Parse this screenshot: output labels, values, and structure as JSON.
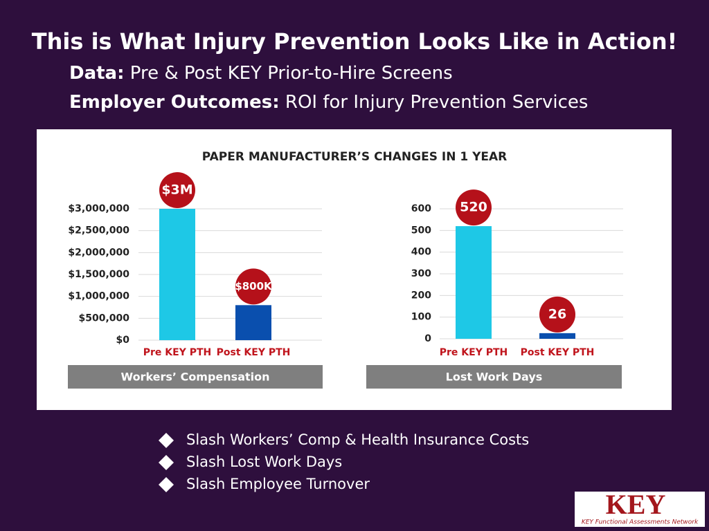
{
  "header": {
    "title": "This is What Injury Prevention Looks Like in Action!",
    "lines": [
      {
        "label": "Data:",
        "text": "Pre & Post KEY Prior-to-Hire Screens"
      },
      {
        "label": "Employer Outcomes:",
        "text": "ROI for Injury Prevention Services"
      }
    ]
  },
  "panel": {
    "title": "PAPER MANUFACTURER’S CHANGES IN 1 YEAR"
  },
  "chart_data": [
    {
      "type": "bar",
      "xlabel": "Workers’ Compensation",
      "categories": [
        "Pre KEY PTH",
        "Post KEY PTH"
      ],
      "values": [
        3000000,
        800000
      ],
      "value_labels": [
        "$3M",
        "$800K"
      ],
      "colors": [
        "#1ec8e6",
        "#0a4fae"
      ],
      "ylim": [
        0,
        3000000
      ],
      "yticks": [
        {
          "value": 0,
          "label": "$0"
        },
        {
          "value": 500000,
          "label": "$500,000"
        },
        {
          "value": 1000000,
          "label": "$1,000,000"
        },
        {
          "value": 1500000,
          "label": "$1,500,000"
        },
        {
          "value": 2000000,
          "label": "$2,000,000"
        },
        {
          "value": 2500000,
          "label": "$2,500,000"
        },
        {
          "value": 3000000,
          "label": "$3,000,000"
        }
      ],
      "grid": true
    },
    {
      "type": "bar",
      "xlabel": "Lost Work Days",
      "categories": [
        "Pre KEY PTH",
        "Post KEY PTH"
      ],
      "values": [
        520,
        26
      ],
      "colors": [
        "#1ec8e6",
        "#0a4fae"
      ],
      "ylim": [
        0,
        600
      ],
      "yticks": [
        0,
        100,
        200,
        300,
        400,
        500,
        600
      ],
      "grid": true
    }
  ],
  "bullets": [
    "Slash Workers’ Comp & Health Insurance Costs",
    "Slash Lost Work Days",
    "Slash Employee Turnover"
  ],
  "logo": {
    "mark": "KEY",
    "text": "KEY Functional Assessments Network"
  }
}
